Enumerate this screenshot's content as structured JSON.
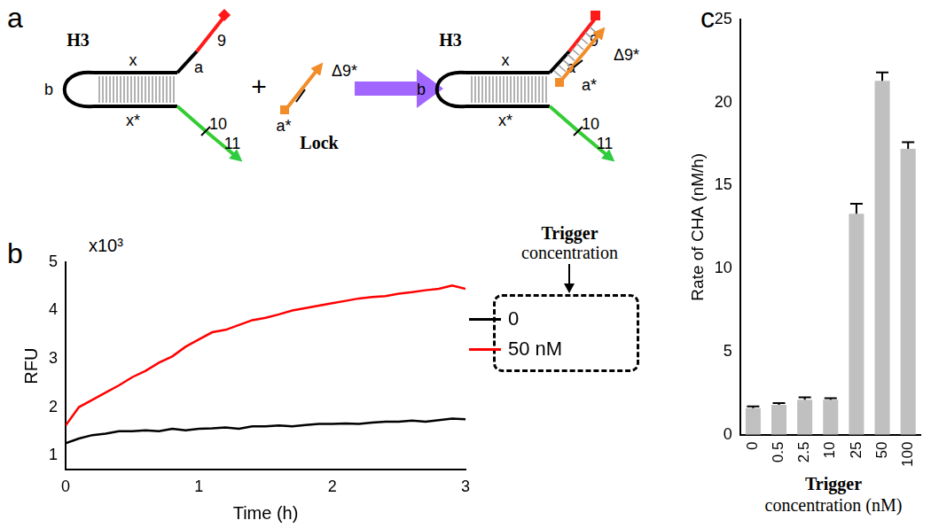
{
  "panel_labels": [
    "a",
    "b",
    "c"
  ],
  "diagram": {
    "hairpin_label": "H3",
    "lock_label": "Lock",
    "operator": "+",
    "domains": {
      "stem_top": "x",
      "stem_bottom": "x*",
      "loop": "b",
      "toehold": "a",
      "tail_top": "9",
      "tail_bottom_1": "10",
      "tail_bottom_2": "11",
      "lock_toehold": "a*",
      "lock_branch": "Δ9*"
    }
  },
  "chart_data": [
    {
      "type": "line",
      "x_label": "Time (h)",
      "y_label": "RFU",
      "y_multiplier": "x10³",
      "x": [
        0,
        0.1,
        0.2,
        0.3,
        0.4,
        0.5,
        0.6,
        0.7,
        0.8,
        0.9,
        1.0,
        1.1,
        1.2,
        1.3,
        1.4,
        1.5,
        1.6,
        1.7,
        1.8,
        1.9,
        2.0,
        2.1,
        2.2,
        2.3,
        2.4,
        2.5,
        2.6,
        2.7,
        2.8,
        2.9,
        3.0
      ],
      "series": [
        {
          "name": "0",
          "color": "#000000",
          "values": [
            1.25,
            1.35,
            1.42,
            1.45,
            1.5,
            1.5,
            1.52,
            1.5,
            1.55,
            1.52,
            1.55,
            1.56,
            1.58,
            1.55,
            1.6,
            1.6,
            1.62,
            1.6,
            1.63,
            1.65,
            1.65,
            1.66,
            1.65,
            1.68,
            1.7,
            1.7,
            1.72,
            1.7,
            1.73,
            1.76,
            1.75
          ]
        },
        {
          "name": "50 nM",
          "color": "#ff0000",
          "values": [
            1.62,
            2.0,
            2.15,
            2.3,
            2.45,
            2.62,
            2.75,
            2.92,
            3.05,
            3.25,
            3.4,
            3.55,
            3.6,
            3.7,
            3.8,
            3.85,
            3.92,
            4.0,
            4.05,
            4.1,
            4.15,
            4.2,
            4.25,
            4.28,
            4.3,
            4.35,
            4.38,
            4.42,
            4.45,
            4.52,
            4.45
          ]
        }
      ],
      "xlim": [
        0,
        3
      ],
      "xticks": [
        0,
        1,
        2,
        3
      ],
      "ylim": [
        0.7,
        5
      ],
      "yticks": [
        1,
        2,
        3,
        4,
        5
      ],
      "grid": false,
      "legend": "right",
      "legend_title": [
        "Trigger",
        "concentration"
      ]
    },
    {
      "type": "bar",
      "x_label": [
        "Trigger",
        "concentration (nM)"
      ],
      "y_label": "Rate of CHA (nM/h)",
      "categories": [
        "0",
        "0.5",
        "2.5",
        "10",
        "25",
        "50",
        "100"
      ],
      "values": [
        1.6,
        1.8,
        2.1,
        2.1,
        13.3,
        21.3,
        17.2
      ],
      "error": [
        0.1,
        0.1,
        0.15,
        0.1,
        0.6,
        0.5,
        0.4
      ],
      "color": "#c0c0c0",
      "ylim": [
        0,
        25
      ],
      "yticks": [
        0,
        5,
        10,
        15,
        20,
        25
      ],
      "grid": false
    }
  ]
}
